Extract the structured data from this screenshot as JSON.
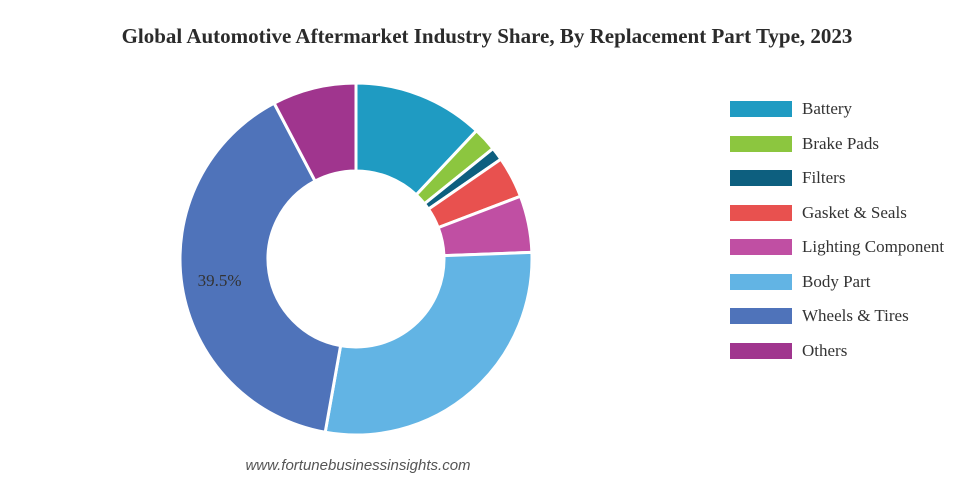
{
  "chart_data": {
    "type": "pie",
    "variant": "donut",
    "title": "Global Automotive Aftermarket Industry Share, By Replacement Part Type, 2023",
    "categories": [
      "Battery",
      "Brake Pads",
      "Filters",
      "Gasket & Seals",
      "Lighting Component",
      "Body Part",
      "Wheels & Tires",
      "Others"
    ],
    "values": [
      12.0,
      2.2,
      1.2,
      3.8,
      5.2,
      28.4,
      39.5,
      7.7
    ],
    "colors": [
      "#1f9bc2",
      "#8cc63f",
      "#0d5f7f",
      "#e8514f",
      "#c04fa3",
      "#62b4e4",
      "#4f73ba",
      "#a0358e"
    ],
    "data_labels": [
      {
        "category": "Wheels & Tires",
        "text": "39.5%"
      }
    ],
    "legend_position": "right"
  },
  "source": "www.fortunebusinessinsights.com"
}
